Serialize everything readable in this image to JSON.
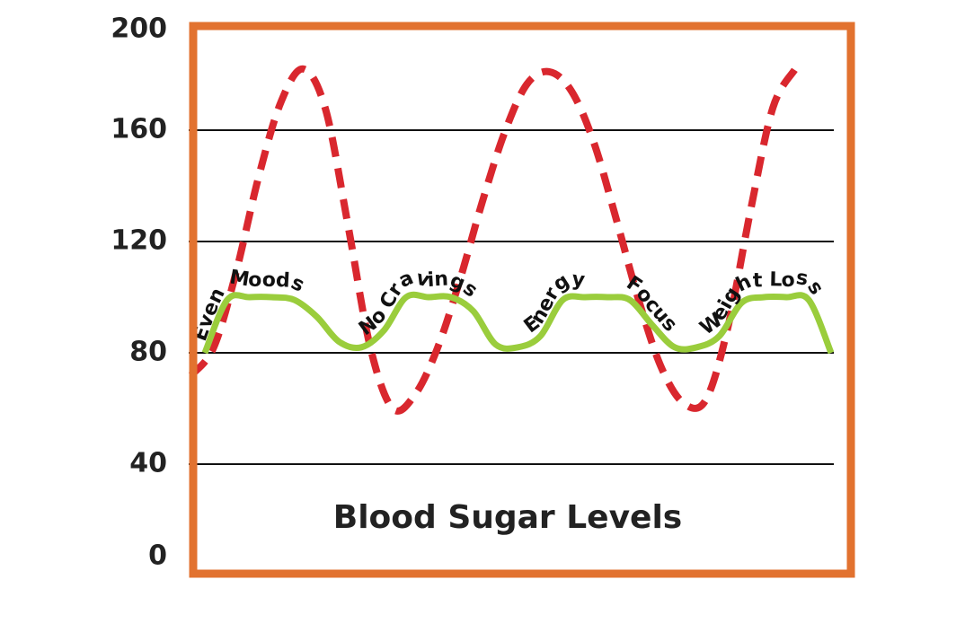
{
  "chart_data": {
    "type": "line",
    "title": "Blood Sugar Levels",
    "ylim": [
      0,
      200
    ],
    "yticks": [
      0,
      40,
      80,
      120,
      160,
      200
    ],
    "grid": true,
    "series": [
      {
        "color": "#d9272e",
        "dashed": true,
        "values": [
          72,
          82,
          109,
          143,
          170,
          182,
          167.5,
          126,
          82,
          60,
          65,
          81.6,
          106,
          134,
          159,
          176.5,
          181,
          174,
          155.5,
          128,
          99,
          75,
          62,
          63,
          89.5,
          131,
          168,
          182
        ]
      },
      {
        "color": "#9acd3c",
        "dashed": false,
        "values": [
          80,
          99,
          100,
          100,
          99,
          93,
          84,
          82,
          88,
          100,
          100,
          100,
          95,
          83,
          82,
          86,
          99,
          100,
          100,
          99,
          90,
          82,
          82,
          86,
          98,
          100,
          100,
          99,
          80
        ]
      }
    ],
    "annotations": [
      "Even Moods",
      "No Cravings",
      "Energy",
      "Focus",
      "Weight Loss"
    ]
  }
}
